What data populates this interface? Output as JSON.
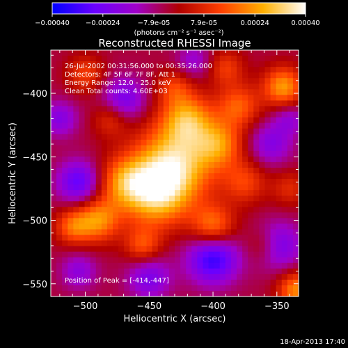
{
  "chart_data": {
    "type": "heatmap",
    "title": "Reconstructed RHESSI Image",
    "xlabel": "Heliocentric X (arcsec)",
    "ylabel": "Heliocentric Y (arcsec)",
    "xlim": [
      -527,
      -333
    ],
    "ylim": [
      -560,
      -366
    ],
    "x_ticks": [
      -500,
      -450,
      -400,
      -350
    ],
    "y_ticks": [
      -550,
      -500,
      -450,
      -400
    ],
    "colorbar": {
      "range": [
        -0.0004,
        0.0004
      ],
      "ticks": [
        "-0.00040",
        "-0.00024",
        "-7.9e-05",
        "7.9e-05",
        "0.00024",
        "0.00040"
      ],
      "unit_label": "(photons cm⁻² s⁻¹ asec⁻²)",
      "colors": [
        "#0000ff",
        "#6a00ff",
        "#a000c8",
        "#b00000",
        "#ff4000",
        "#ffb000",
        "#ffffff"
      ]
    },
    "annotations": {
      "time_range": "26-Jul-2002 00:31:56.000 to 00:35:26.000",
      "detectors": "Detectors: 4F 5F 6F 7F 8F, Att 1",
      "energy_range": "Energy Range: 12.0 - 25.0 keV",
      "clean_counts": "Clean     Total counts: 4.60E+03",
      "peak": "Position of Peak = [-414,-447]"
    },
    "peak_position": [
      -414,
      -447
    ],
    "blobs": [
      {
        "x": -430,
        "y": -455,
        "amp": 0.00035,
        "sigma": 22
      },
      {
        "x": -445,
        "y": -480,
        "amp": 0.0003,
        "sigma": 18
      },
      {
        "x": -420,
        "y": -420,
        "amp": 0.00026,
        "sigma": 14
      },
      {
        "x": -395,
        "y": -440,
        "amp": 0.00022,
        "sigma": 13
      },
      {
        "x": -380,
        "y": -410,
        "amp": 0.0002,
        "sigma": 12
      },
      {
        "x": -375,
        "y": -470,
        "amp": 0.00016,
        "sigma": 12
      },
      {
        "x": -400,
        "y": -505,
        "amp": 0.00024,
        "sigma": 12
      },
      {
        "x": -470,
        "y": -470,
        "amp": 0.00022,
        "sigma": 14
      },
      {
        "x": -490,
        "y": -500,
        "amp": 0.00026,
        "sigma": 12
      },
      {
        "x": -510,
        "y": -505,
        "amp": 0.0002,
        "sigma": 10
      },
      {
        "x": -455,
        "y": -520,
        "amp": 0.00018,
        "sigma": 10
      },
      {
        "x": -345,
        "y": -395,
        "amp": 0.00028,
        "sigma": 11
      },
      {
        "x": -390,
        "y": -380,
        "amp": 0.00015,
        "sigma": 10
      },
      {
        "x": -480,
        "y": -420,
        "amp": 0.00014,
        "sigma": 10
      },
      {
        "x": -500,
        "y": -385,
        "amp": 0.00016,
        "sigma": 10
      },
      {
        "x": -430,
        "y": -395,
        "amp": 0.00014,
        "sigma": 10
      },
      {
        "x": -340,
        "y": -475,
        "amp": 0.00012,
        "sigma": 10
      },
      {
        "x": -335,
        "y": -555,
        "amp": 0.00026,
        "sigma": 10
      },
      {
        "x": -360,
        "y": -520,
        "amp": 0.00014,
        "sigma": 10
      },
      {
        "x": -505,
        "y": -470,
        "amp": -0.00024,
        "sigma": 12
      },
      {
        "x": -470,
        "y": -405,
        "amp": -0.0002,
        "sigma": 12
      },
      {
        "x": -400,
        "y": -530,
        "amp": -0.0003,
        "sigma": 14
      },
      {
        "x": -350,
        "y": -520,
        "amp": -0.00022,
        "sigma": 13
      },
      {
        "x": -450,
        "y": -545,
        "amp": -0.00018,
        "sigma": 12
      },
      {
        "x": -355,
        "y": -440,
        "amp": -0.00016,
        "sigma": 12
      },
      {
        "x": -415,
        "y": -375,
        "amp": -0.00012,
        "sigma": 10
      },
      {
        "x": -520,
        "y": -420,
        "amp": -0.00016,
        "sigma": 10
      },
      {
        "x": -340,
        "y": -420,
        "amp": -0.00012,
        "sigma": 9
      },
      {
        "x": -505,
        "y": -540,
        "amp": -0.00014,
        "sigma": 10
      }
    ]
  },
  "footer": {
    "timestamp": "18-Apr-2013 17:40"
  }
}
